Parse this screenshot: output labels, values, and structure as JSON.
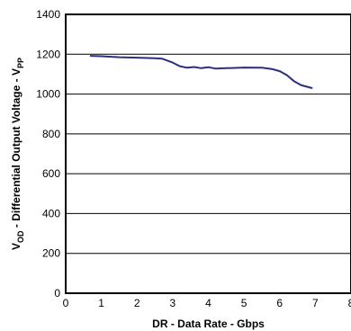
{
  "chart_data": {
    "type": "line",
    "title": "",
    "xlabel": "DR - Data Rate - Gbps",
    "ylabel": {
      "prefix": "V",
      "prefix_sub": "OD",
      "main": " - Differential Output Voltage - V",
      "main_sub": "PP"
    },
    "xlim": [
      0,
      8
    ],
    "ylim": [
      0,
      1400
    ],
    "x_ticks": [
      0,
      1,
      2,
      3,
      4,
      5,
      6,
      7,
      8
    ],
    "x_tick_labels": [
      "0",
      "1",
      "2",
      "3",
      "4",
      "5",
      "6",
      "7",
      "8"
    ],
    "y_ticks": [
      0,
      200,
      400,
      600,
      800,
      1000,
      1200,
      1400
    ],
    "y_tick_labels": [
      "0",
      "200",
      "400",
      "600",
      "800",
      "1000",
      "1200",
      "1400"
    ],
    "grid": true,
    "series": [
      {
        "color": "#2b2f7e",
        "x": [
          0.7,
          1.0,
          1.5,
          2.0,
          2.5,
          2.7,
          3.0,
          3.2,
          3.4,
          3.6,
          3.8,
          4.0,
          4.2,
          4.5,
          5.0,
          5.5,
          5.8,
          6.0,
          6.2,
          6.4,
          6.6,
          6.9
        ],
        "y": [
          1192,
          1190,
          1185,
          1183,
          1180,
          1178,
          1158,
          1140,
          1132,
          1136,
          1130,
          1135,
          1128,
          1130,
          1133,
          1132,
          1125,
          1115,
          1095,
          1065,
          1045,
          1030
        ]
      }
    ]
  }
}
